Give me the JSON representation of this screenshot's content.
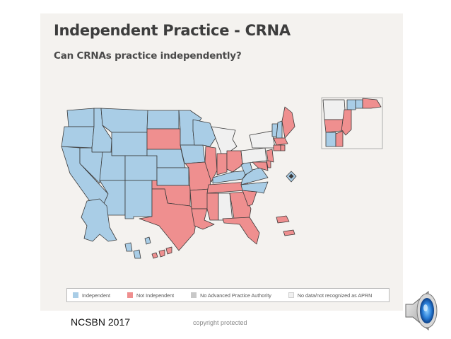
{
  "title": "Independent Practice - CRNA",
  "subtitle": "Can CRNAs practice independently?",
  "legend": [
    {
      "label": "Independent",
      "color": "#a9cde6"
    },
    {
      "label": "Not Independent",
      "color": "#ef8f8f"
    },
    {
      "label": "No Advanced Practice Authority",
      "color": "#c8c8c8"
    },
    {
      "label": "No data/not recognized as APRN",
      "color": "#f0f0f0"
    }
  ],
  "footer": {
    "source": "NCSBN 2017",
    "copyright": "copyright protected"
  },
  "colors": {
    "independent": "#a9cde6",
    "not_independent": "#ef8f8f",
    "no_authority": "#c8c8c8",
    "no_data": "#f0f0f0",
    "border": "#3a3a3a"
  },
  "icons": {
    "speaker": "speaker-icon"
  }
}
